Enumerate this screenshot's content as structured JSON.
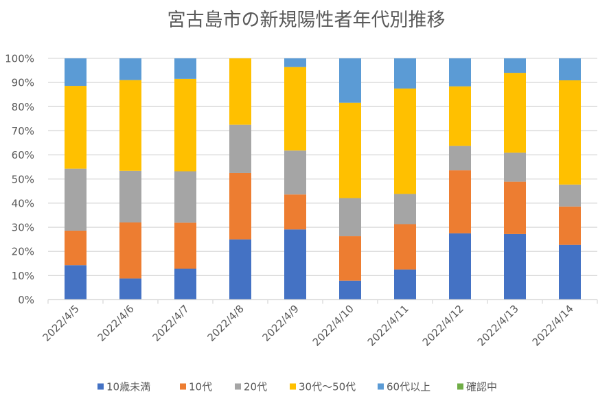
{
  "chart_data": {
    "type": "bar",
    "stacked": true,
    "percent_stacked": true,
    "title": "宮古島市の新規陽性者年代別推移",
    "xlabel": "",
    "ylabel": "",
    "ylim": [
      0,
      100
    ],
    "y_ticks": [
      "0%",
      "10%",
      "20%",
      "30%",
      "40%",
      "50%",
      "60%",
      "70%",
      "80%",
      "90%",
      "100%"
    ],
    "grid": true,
    "legend_position": "bottom",
    "categories": [
      "2022/4/5",
      "2022/4/6",
      "2022/4/7",
      "2022/4/8",
      "2022/4/9",
      "2022/4/10",
      "2022/4/11",
      "2022/4/12",
      "2022/4/13",
      "2022/4/14"
    ],
    "series": [
      {
        "name": "10歳未満",
        "color": "#4472c4",
        "values": [
          14.3,
          8.8,
          12.8,
          25.0,
          29.1,
          7.9,
          12.5,
          27.5,
          27.2,
          22.7
        ]
      },
      {
        "name": "10代",
        "color": "#ed7d31",
        "values": [
          14.3,
          23.2,
          19.1,
          27.5,
          14.5,
          18.4,
          18.8,
          26.1,
          21.7,
          15.9
        ]
      },
      {
        "name": "20代",
        "color": "#a5a5a5",
        "values": [
          25.7,
          21.4,
          21.3,
          20.0,
          18.2,
          15.8,
          12.5,
          10.1,
          12.0,
          9.1
        ]
      },
      {
        "name": "30代〜50代",
        "color": "#ffc000",
        "values": [
          34.3,
          37.6,
          38.3,
          27.5,
          34.6,
          39.5,
          43.7,
          24.7,
          33.1,
          43.2
        ]
      },
      {
        "name": "60代以上",
        "color": "#5b9bd5",
        "values": [
          11.4,
          9.0,
          8.5,
          0.0,
          3.6,
          18.4,
          12.5,
          11.6,
          6.0,
          9.1
        ]
      },
      {
        "name": "確認中",
        "color": "#70ad47",
        "values": [
          0,
          0,
          0,
          0,
          0,
          0,
          0,
          0,
          0,
          0
        ]
      }
    ]
  }
}
